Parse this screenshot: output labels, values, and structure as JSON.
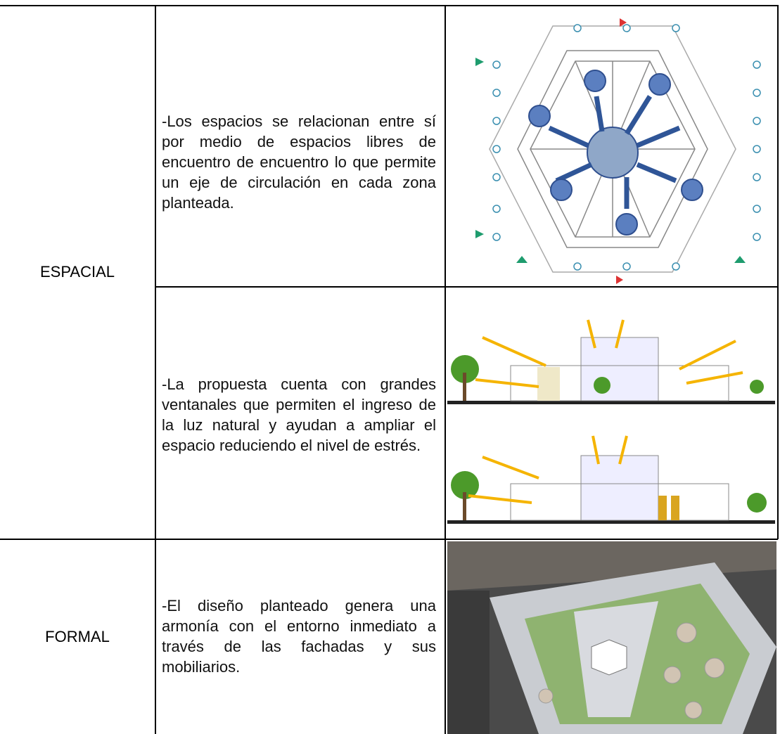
{
  "table": {
    "rows": [
      {
        "category": "ESPACIAL",
        "items": [
          "-Los espacios se relacionan entre sí por medio de espacios libres de encuentro de encuentro lo que permite un eje de circulación en cada zona planteada.",
          "-La propuesta cuenta con grandes ventanales que permiten el ingreso de la luz natural y ayudan a ampliar el espacio reduciendo el nivel de estrés."
        ]
      },
      {
        "category": "FORMAL",
        "items": [
          "-El diseño planteado genera una armonía con el entorno inmediato a través de las fachadas y sus mobiliarios."
        ]
      }
    ]
  }
}
